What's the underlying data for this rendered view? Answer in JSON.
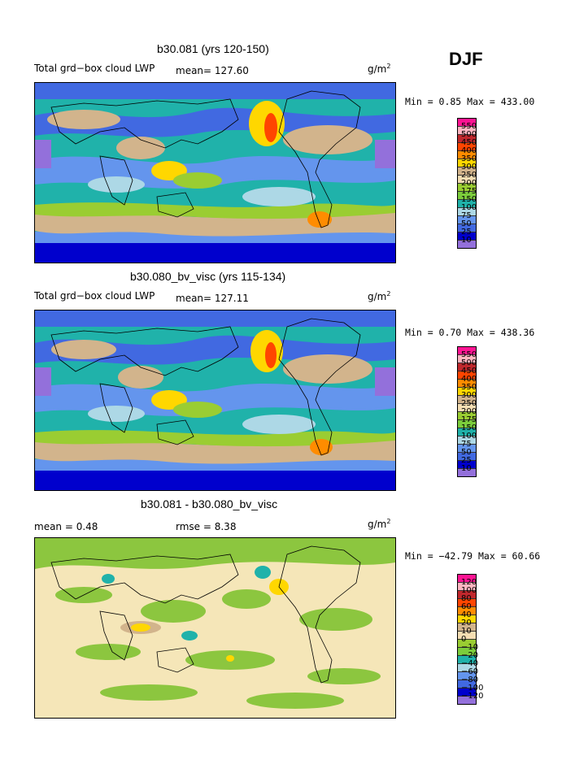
{
  "season": "DJF",
  "panels": [
    {
      "title": "b30.081 (yrs 120-150)",
      "left_label": "Total grd−box cloud LWP",
      "mean_text": "mean= 127.60",
      "units": "g/m",
      "units_sup": "2",
      "minmax": "Min =   0.85 Max = 433.00",
      "levels": [
        "550",
        "500",
        "450",
        "400",
        "350",
        "300",
        "250",
        "200",
        "175",
        "150",
        "100",
        "75",
        "50",
        "25",
        "10"
      ]
    },
    {
      "title": "b30.080_bv_visc (yrs 115-134)",
      "left_label": "Total grd−box cloud LWP",
      "mean_text": "mean= 127.11",
      "units": "g/m",
      "units_sup": "2",
      "minmax": "Min =   0.70 Max = 438.36",
      "levels": [
        "550",
        "500",
        "450",
        "400",
        "350",
        "300",
        "250",
        "200",
        "175",
        "150",
        "100",
        "75",
        "50",
        "25",
        "10"
      ]
    },
    {
      "title": "b30.081 - b30.080_bv_visc",
      "left_label": "mean =    0.48",
      "mean_text": "rmse =    8.38",
      "units": "g/m",
      "units_sup": "2",
      "minmax": "Min = −42.79 Max =  60.66",
      "levels": [
        "120",
        "100",
        "80",
        "60",
        "40",
        "20",
        "10",
        "0",
        "−10",
        "−20",
        "−40",
        "−60",
        "−80",
        "−100",
        "−120"
      ]
    }
  ],
  "colors": {
    "scale": [
      "#ff1493",
      "#ffb6c1",
      "#c0282d",
      "#ff4500",
      "#ff8c00",
      "#ffd700",
      "#d2b48c",
      "#f5deb3",
      "#9acd32",
      "#7ccd3c",
      "#20b2aa",
      "#add8e6",
      "#6495ed",
      "#4169e1",
      "#0000cd",
      "#9370db"
    ],
    "diff_base": "#f5e6b8",
    "diff_green": "#8cc63f"
  }
}
